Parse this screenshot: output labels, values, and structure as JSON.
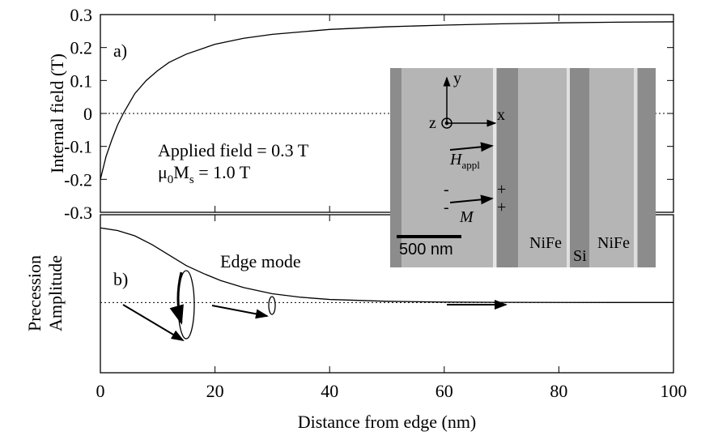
{
  "chart_data": [
    {
      "type": "line",
      "panel_label": "a)",
      "ylabel": "Internal field (T)",
      "x": [
        0,
        1,
        2,
        3,
        4,
        6,
        8,
        10,
        12,
        15,
        20,
        25,
        30,
        40,
        50,
        60,
        70,
        80,
        90,
        100
      ],
      "values": [
        -0.2,
        -0.13,
        -0.08,
        -0.035,
        0.0,
        0.06,
        0.1,
        0.13,
        0.155,
        0.18,
        0.21,
        0.228,
        0.24,
        0.255,
        0.263,
        0.268,
        0.272,
        0.275,
        0.277,
        0.278
      ],
      "color": "#000000",
      "xlim": [
        0,
        100
      ],
      "ylim": [
        -0.3,
        0.3
      ],
      "yticks": [
        -0.3,
        -0.2,
        -0.1,
        0,
        0.1,
        0.2,
        0.3
      ],
      "annotations": {
        "applied": "Applied field = 0.3 T",
        "moment": [
          "μ",
          "0",
          "M",
          "s",
          " = 1.0 T"
        ]
      }
    },
    {
      "type": "line",
      "panel_label": "b)",
      "ylabel": [
        "Precession",
        "Amplitude"
      ],
      "xlabel": "Distance from edge (nm)",
      "x": [
        0,
        3,
        6,
        9,
        12,
        15,
        18,
        21,
        25,
        30,
        35,
        40,
        50,
        60,
        70,
        80,
        90,
        100
      ],
      "values": [
        0.85,
        0.82,
        0.76,
        0.66,
        0.54,
        0.42,
        0.33,
        0.25,
        0.17,
        0.1,
        0.06,
        0.035,
        0.014,
        0.005,
        0.002,
        0.001,
        0,
        0
      ],
      "color": "#000000",
      "xlim": [
        0,
        100
      ],
      "ylim": [
        -0.8,
        1.0
      ],
      "xticks": [
        0,
        20,
        40,
        60,
        80,
        100
      ],
      "annotations": {
        "mode": "Edge mode"
      }
    }
  ],
  "inset": {
    "y": "y",
    "x": "x",
    "z": "z",
    "h": "H",
    "h_sub": "appl",
    "m": "M",
    "plus": [
      "+",
      "+"
    ],
    "minus": [
      "-",
      "-"
    ],
    "scale": "500 nm",
    "nife1": "NiFe",
    "si": "Si",
    "nife2": "NiFe"
  }
}
